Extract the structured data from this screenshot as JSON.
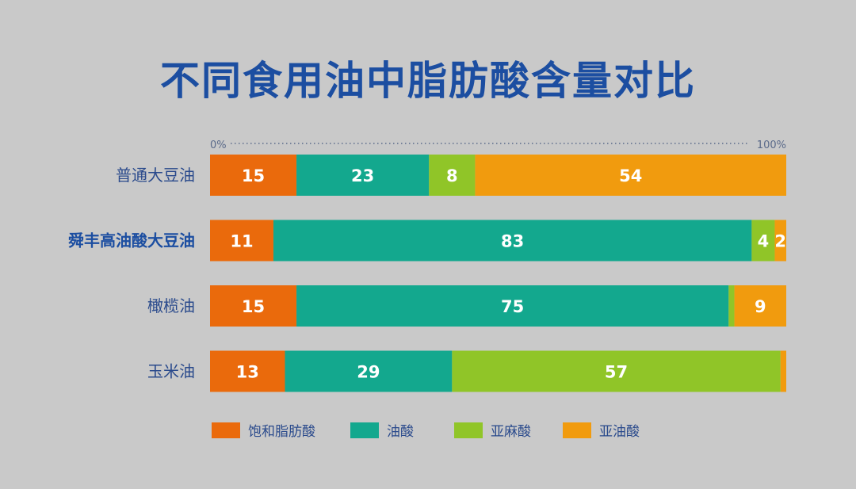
{
  "title": "不同食用油中脂肪酸含量对比",
  "colors": {
    "title": "#1c4ea1",
    "axis": "#5a6a8a",
    "label": "#2a4a8c",
    "label_bold": "#1c4ea1",
    "bar_text": "#ffffff"
  },
  "chart_data": {
    "type": "bar",
    "orientation": "horizontal",
    "stacked": true,
    "percent_stacked": true,
    "title": "不同食用油中脂肪酸含量对比",
    "x_tick_labels": [
      "0%",
      "100%"
    ],
    "xlim": [
      0,
      100
    ],
    "grid": false,
    "legend_position": "bottom",
    "categories": [
      "普通大豆油",
      "舜丰高油酸大豆油",
      "橄榄油",
      "玉米油"
    ],
    "highlighted_category": "舜丰高油酸大豆油",
    "series": [
      {
        "name": "饱和脂肪酸",
        "color": "#ea6a0c",
        "values": [
          15,
          11,
          15,
          13
        ],
        "labels": [
          "15",
          "11",
          "15",
          "13"
        ]
      },
      {
        "name": "油酸",
        "color": "#13a88e",
        "values": [
          23,
          83,
          75,
          29
        ],
        "labels": [
          "23",
          "83",
          "75",
          "29"
        ]
      },
      {
        "name": "亚麻酸",
        "color": "#90c528",
        "values": [
          8,
          4,
          1,
          57
        ],
        "labels": [
          "8",
          "4",
          "",
          "57"
        ]
      },
      {
        "name": "亚油酸",
        "color": "#f19b0e",
        "values": [
          54,
          2,
          9,
          1
        ],
        "labels": [
          "54",
          "2",
          "9",
          ""
        ]
      }
    ]
  }
}
